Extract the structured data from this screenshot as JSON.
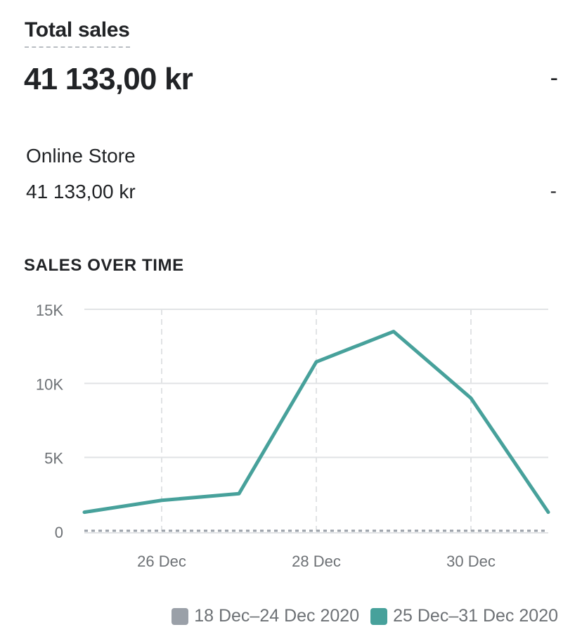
{
  "header": {
    "title": "Total sales",
    "total_value": "41 133,00 kr",
    "total_change": "-"
  },
  "breakdown": {
    "channel_name": "Online Store",
    "channel_value": "41 133,00 kr",
    "channel_change": "-"
  },
  "section_title": "SALES OVER TIME",
  "colors": {
    "current": "#47a19b",
    "previous": "#9aa0a8",
    "grid": "#e1e3e5",
    "axis_text": "#6d7175"
  },
  "chart_data": {
    "type": "line",
    "x": [
      "2020-12-25",
      "2020-12-26",
      "2020-12-27",
      "2020-12-28",
      "2020-12-29",
      "2020-12-30",
      "2020-12-31"
    ],
    "x_tick_labels": [
      {
        "x": "2020-12-26",
        "label": "26 Dec"
      },
      {
        "x": "2020-12-28",
        "label": "28 Dec"
      },
      {
        "x": "2020-12-30",
        "label": "30 Dec"
      }
    ],
    "y_ticks": [
      0,
      5000,
      10000,
      15000
    ],
    "y_tick_labels": [
      "0",
      "5K",
      "10K",
      "15K"
    ],
    "ylim": [
      0,
      15000
    ],
    "grid": true,
    "legend_position": "bottom-right",
    "series": [
      {
        "name": "18 Dec–24 Dec 2020",
        "values": [
          0,
          0,
          0,
          0,
          0,
          0,
          0
        ]
      },
      {
        "name": "25 Dec–31 Dec 2020",
        "values": [
          1300,
          2100,
          2550,
          11450,
          13500,
          9000,
          1300
        ]
      }
    ]
  }
}
